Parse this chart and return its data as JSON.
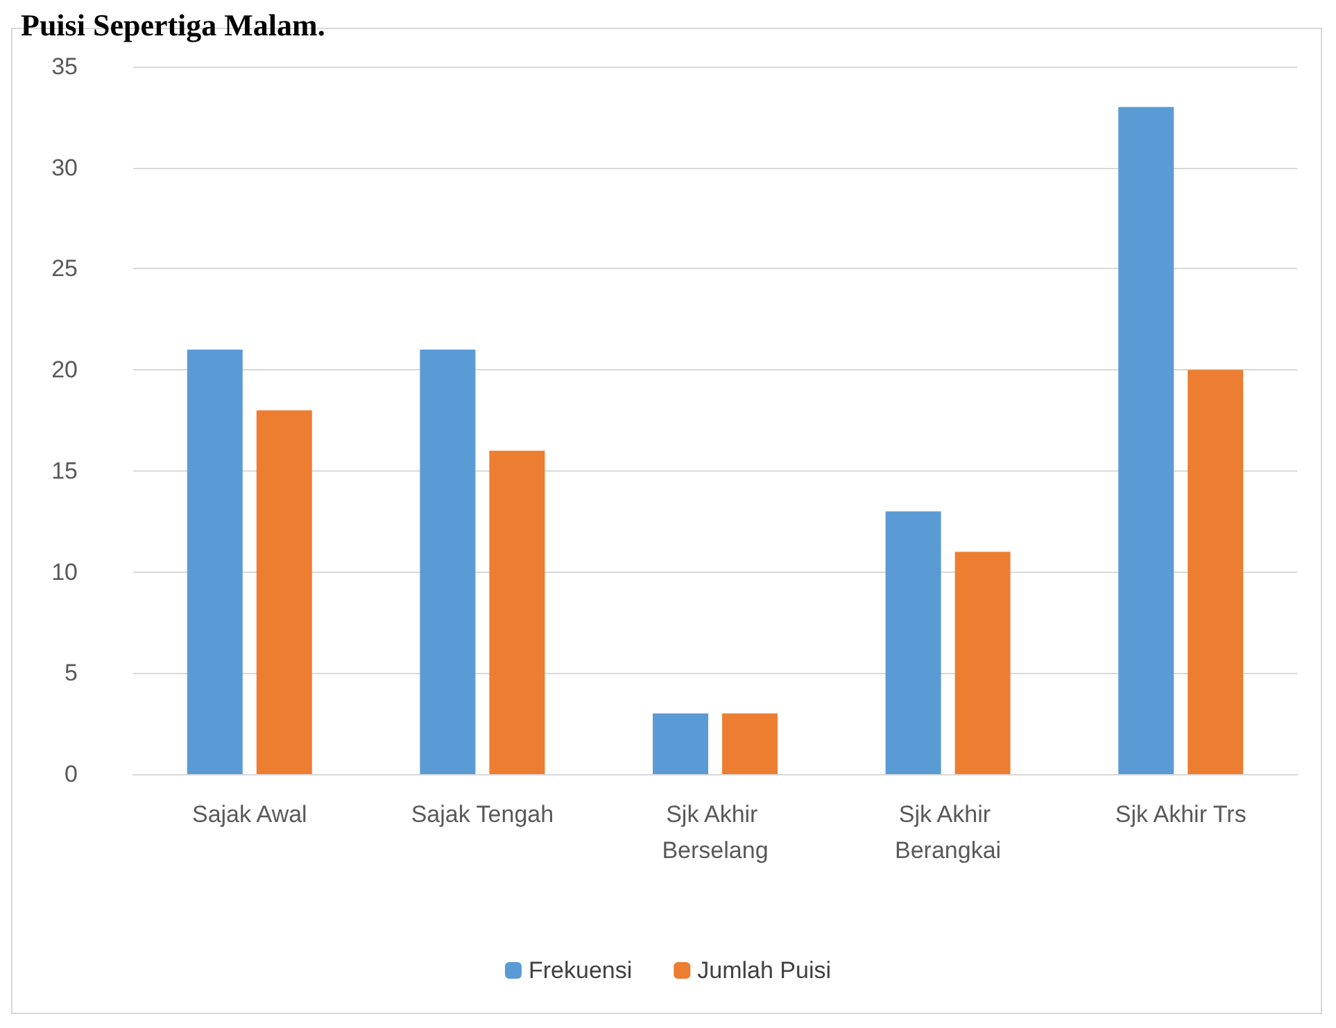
{
  "chart_data": {
    "type": "bar",
    "title": "Puisi Sepertiga Malam.",
    "categories": [
      "Sajak Awal",
      "Sajak Tengah",
      "Sjk Akhir Berselang",
      "Sjk Akhir Berangkai",
      "Sjk Akhir Trs"
    ],
    "series": [
      {
        "name": "Frekuensi",
        "color": "#5b9bd5",
        "values": [
          21,
          21,
          3,
          13,
          33
        ]
      },
      {
        "name": "Jumlah Puisi",
        "color": "#ed7d31",
        "values": [
          18,
          16,
          3,
          11,
          20
        ]
      }
    ],
    "ylim": [
      0,
      35
    ],
    "yticks": [
      0,
      5,
      10,
      15,
      20,
      25,
      30,
      35
    ],
    "grid": "y",
    "legend": "bottom"
  }
}
